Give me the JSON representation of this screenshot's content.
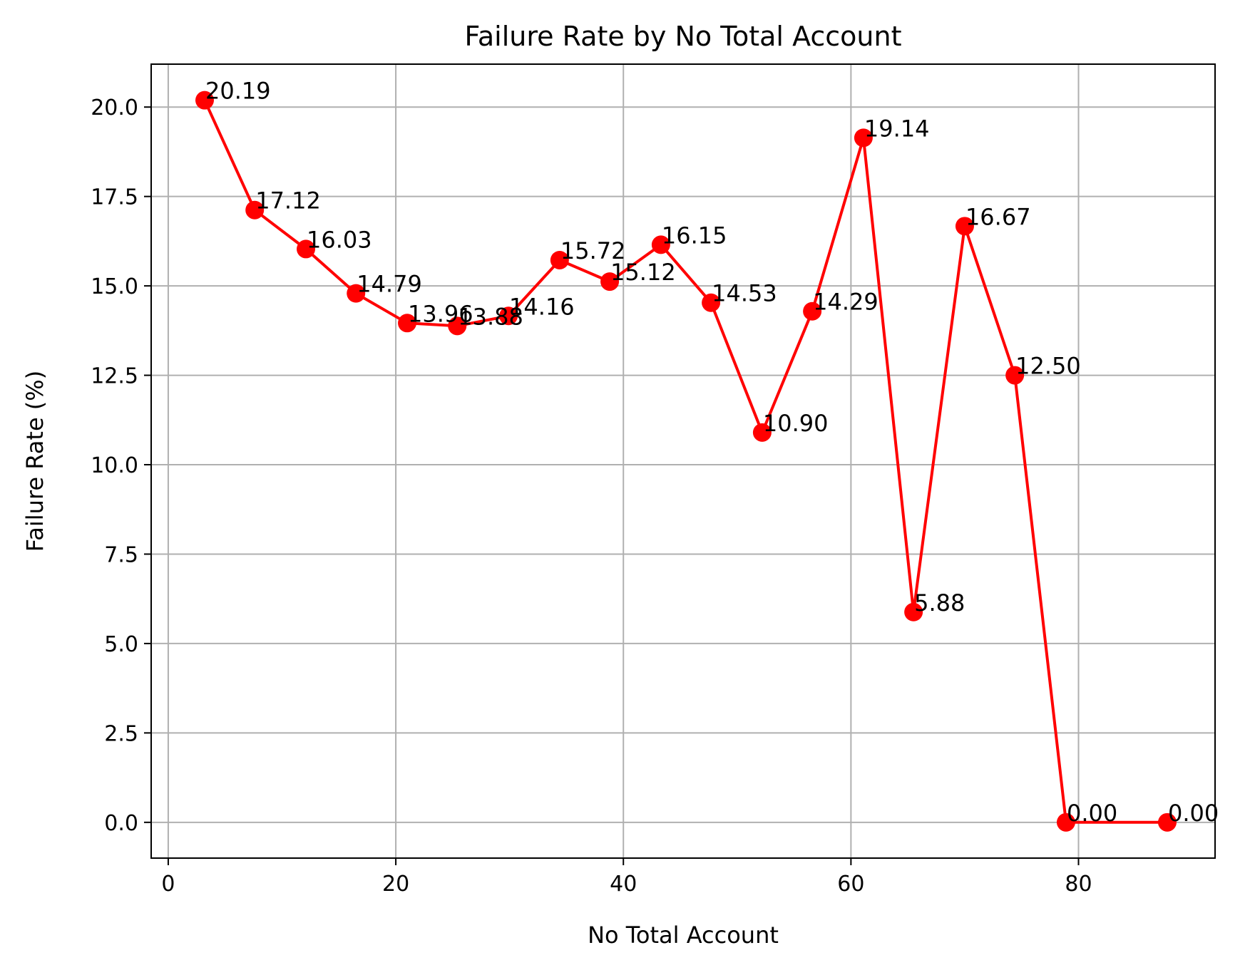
{
  "chart_data": {
    "type": "line",
    "title": "Failure Rate by No Total Account",
    "xlabel": "No Total Account",
    "ylabel": "Failure Rate (%)",
    "xlim": [
      -1.5,
      92
    ],
    "ylim": [
      -1.0,
      21.2
    ],
    "xticks": [
      0,
      20,
      40,
      60,
      80
    ],
    "xtick_labels": [
      "0",
      "20",
      "40",
      "60",
      "80"
    ],
    "yticks": [
      0.0,
      2.5,
      5.0,
      7.5,
      10.0,
      12.5,
      15.0,
      17.5,
      20.0
    ],
    "ytick_labels": [
      "0.0",
      "2.5",
      "5.0",
      "7.5",
      "10.0",
      "12.5",
      "15.0",
      "17.5",
      "20.0"
    ],
    "grid": true,
    "series": [
      {
        "color": "#ff0000",
        "marker": "circle",
        "x": [
          3.2,
          7.6,
          12.1,
          16.5,
          21.0,
          25.4,
          29.9,
          34.4,
          38.8,
          43.3,
          47.7,
          52.2,
          56.6,
          61.1,
          65.5,
          70.0,
          74.4,
          78.9,
          87.8
        ],
        "y": [
          20.19,
          17.12,
          16.03,
          14.79,
          13.96,
          13.88,
          14.16,
          15.72,
          15.12,
          16.15,
          14.53,
          10.9,
          14.29,
          19.14,
          5.88,
          16.67,
          12.5,
          0.0,
          0.0
        ],
        "labels": [
          "20.19",
          "17.12",
          "16.03",
          "14.79",
          "13.96",
          "13.88",
          "14.16",
          "15.72",
          "15.12",
          "16.15",
          "14.53",
          "10.90",
          "14.29",
          "19.14",
          "5.88",
          "16.67",
          "12.50",
          "0.00",
          "0.00"
        ]
      }
    ]
  }
}
